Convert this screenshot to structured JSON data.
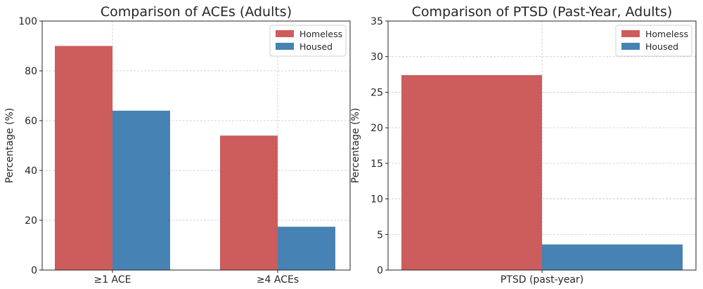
{
  "chart_data": [
    {
      "type": "bar",
      "title": "Comparison of ACEs (Adults)",
      "xlabel": "",
      "ylabel": "Percentage (%)",
      "categories": [
        "≥1 ACE",
        "≥4 ACEs"
      ],
      "series": [
        {
          "name": "Homeless",
          "values": [
            90,
            54
          ],
          "color": "#cd5c5c"
        },
        {
          "name": "Housed",
          "values": [
            64,
            17.4
          ],
          "color": "#4682b4"
        }
      ],
      "ylim": [
        0,
        100
      ],
      "yticks": [
        0,
        20,
        40,
        60,
        80,
        100
      ],
      "grid": true,
      "legend": "top-right"
    },
    {
      "type": "bar",
      "title": "Comparison of PTSD (Past-Year, Adults)",
      "xlabel": "",
      "ylabel": "Percentage (%)",
      "categories": [
        "PTSD (past-year)"
      ],
      "series": [
        {
          "name": "Homeless",
          "values": [
            27.4
          ],
          "color": "#cd5c5c"
        },
        {
          "name": "Housed",
          "values": [
            3.6
          ],
          "color": "#4682b4"
        }
      ],
      "ylim": [
        0,
        35
      ],
      "yticks": [
        0,
        5,
        10,
        15,
        20,
        25,
        30,
        35
      ],
      "grid": true,
      "legend": "top-right"
    }
  ]
}
